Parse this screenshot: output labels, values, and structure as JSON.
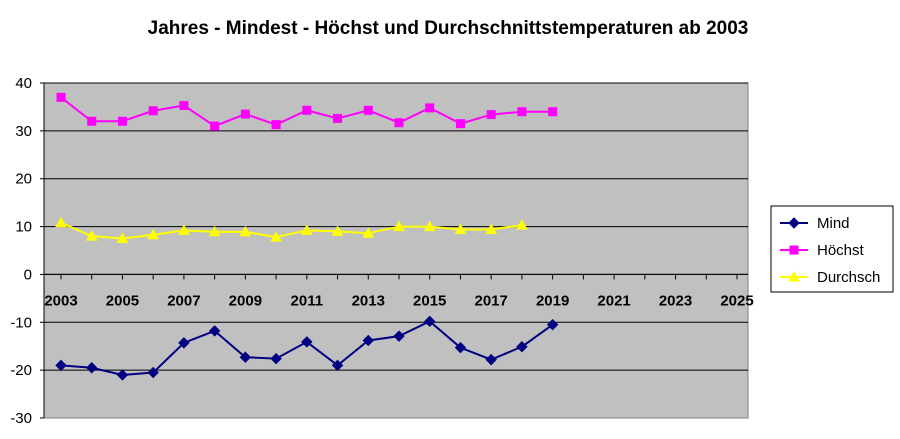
{
  "chart_data": {
    "type": "line",
    "title": "Jahres - Mindest - Höchst und Durchschnittstemperaturen ab 2003",
    "xlabel": "",
    "ylabel": "",
    "xlim": [
      2003,
      2026
    ],
    "ylim": [
      -30,
      40
    ],
    "x_ticks": [
      "2003",
      "2005",
      "2007",
      "2009",
      "2011",
      "2013",
      "2015",
      "2017",
      "2019",
      "2021",
      "2023",
      "2025"
    ],
    "x_tick_values": [
      2003,
      2005,
      2007,
      2009,
      2011,
      2013,
      2015,
      2017,
      2019,
      2021,
      2023,
      2025
    ],
    "y_ticks": [
      "40",
      "30",
      "20",
      "10",
      "0",
      "-10",
      "-20",
      "-30"
    ],
    "y_tick_values": [
      40,
      30,
      20,
      10,
      0,
      -10,
      -20,
      -30
    ],
    "grid": "horizontal",
    "plot_background": "#c0c0c0",
    "legend_position": "right",
    "series": [
      {
        "name": "Mind",
        "color": "#000080",
        "marker": "diamond",
        "x": [
          2003,
          2004,
          2005,
          2006,
          2007,
          2008,
          2009,
          2010,
          2011,
          2012,
          2013,
          2014,
          2015,
          2016,
          2017,
          2018,
          2019
        ],
        "values": [
          -19.0,
          -19.5,
          -21.0,
          -20.5,
          -14.3,
          -11.8,
          -17.3,
          -17.6,
          -14.1,
          -19.0,
          -13.8,
          -12.9,
          -9.8,
          -15.3,
          -17.8,
          -15.1,
          -10.5
        ]
      },
      {
        "name": "Höchst",
        "color": "#ff00ff",
        "marker": "square",
        "x": [
          2003,
          2004,
          2005,
          2006,
          2007,
          2008,
          2009,
          2010,
          2011,
          2012,
          2013,
          2014,
          2015,
          2016,
          2017,
          2018,
          2019
        ],
        "values": [
          37.0,
          32.0,
          32.0,
          34.2,
          35.3,
          31.0,
          33.5,
          31.3,
          34.3,
          32.6,
          34.3,
          31.7,
          34.8,
          31.5,
          33.4,
          34.0,
          34.0
        ]
      },
      {
        "name": "Durchsch",
        "color": "#ffff00",
        "marker": "triangle",
        "x": [
          2003,
          2004,
          2005,
          2006,
          2007,
          2008,
          2009,
          2010,
          2011,
          2012,
          2013,
          2014,
          2015,
          2016,
          2017,
          2018
        ],
        "values": [
          10.8,
          8.0,
          7.5,
          8.3,
          9.2,
          8.9,
          8.9,
          7.8,
          9.2,
          9.0,
          8.6,
          10.0,
          10.0,
          9.4,
          9.4,
          10.3
        ]
      }
    ]
  }
}
